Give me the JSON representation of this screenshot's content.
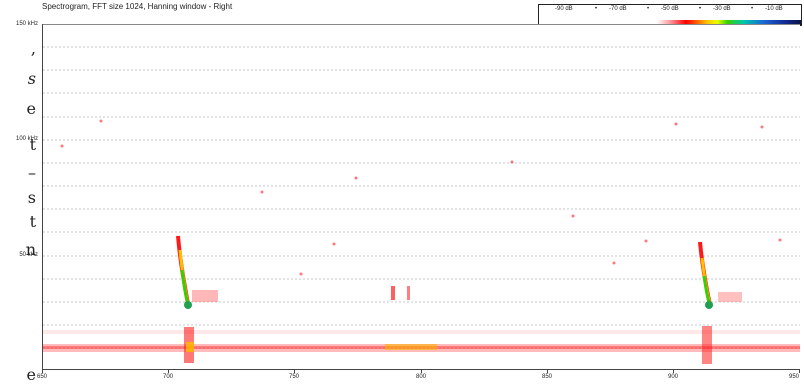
{
  "panel": {
    "title": "Spectrogram, FFT size 1024, Hanning window - Right"
  },
  "colorbar": {
    "labels": [
      "-90 dB",
      "-70 dB",
      "-50 dB",
      "-30 dB",
      "-10 dB"
    ],
    "colors": [
      "#ffffff",
      "#ff0000",
      "#ffc000",
      "#37d000",
      "#1a64d6",
      "#091445"
    ]
  },
  "left_fragments": [
    ",",
    "s",
    "e",
    "t",
    "–",
    "s",
    "t",
    "n",
    "e"
  ],
  "axes": {
    "y_ticks": [
      "150 kHz",
      "100 kHz",
      "50 kHz"
    ],
    "x_ticks": [
      "650",
      "700",
      "750",
      "800",
      "850",
      "900",
      "950"
    ]
  }
}
